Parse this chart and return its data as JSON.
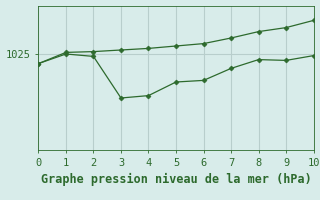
{
  "x": [
    0,
    1,
    2,
    3,
    4,
    5,
    6,
    7,
    8,
    9,
    10
  ],
  "upper_line": [
    1023.8,
    1025.2,
    1025.3,
    1025.5,
    1025.7,
    1026.0,
    1026.3,
    1027.0,
    1027.8,
    1028.3,
    1029.2
  ],
  "lower_line": [
    1023.8,
    1025.0,
    1024.7,
    1019.5,
    1019.8,
    1021.5,
    1021.7,
    1023.2,
    1024.3,
    1024.2,
    1024.8
  ],
  "line_color": "#2d6a2d",
  "bg_color": "#d8ecea",
  "grid_color": "#b8cecc",
  "xlabel": "Graphe pression niveau de la mer (hPa)",
  "xlim": [
    0,
    10
  ],
  "ylim": [
    1013,
    1031
  ],
  "yticks": [
    1025
  ],
  "xticks": [
    0,
    1,
    2,
    3,
    4,
    5,
    6,
    7,
    8,
    9,
    10
  ],
  "tick_fontsize": 7.5,
  "xlabel_fontsize": 8.5
}
